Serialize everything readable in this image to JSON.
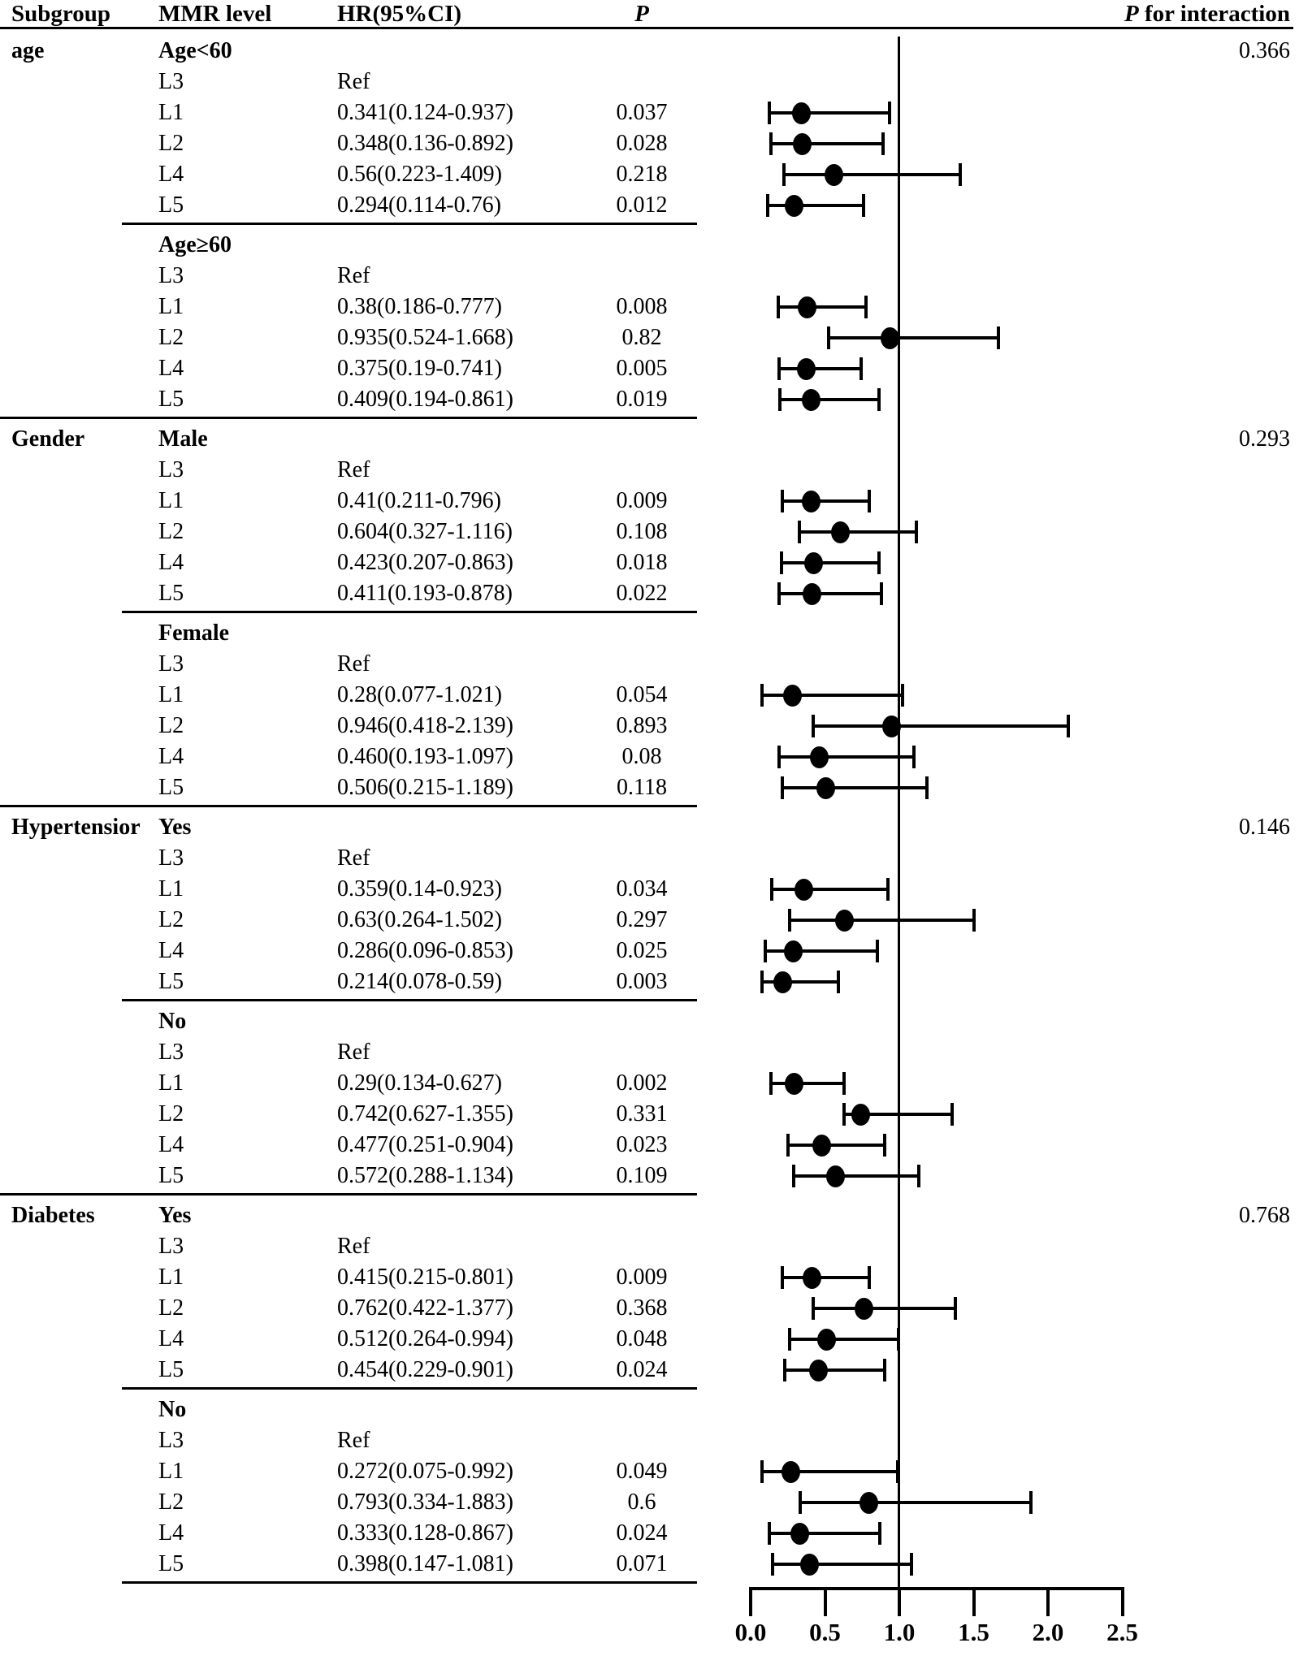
{
  "colors": {
    "ink": "#000000",
    "background": "#ffffff"
  },
  "header": {
    "subgroup": "Subgroup",
    "mmr": "MMR level",
    "hr": "HR(95%CI)",
    "p": "P",
    "p_interaction_italic": "P",
    "p_interaction_rest": " for interaction"
  },
  "chart_data": {
    "type": "forest",
    "x_axis": {
      "tick_labels": [
        "0.0",
        "0.5",
        "1.0",
        "1.5",
        "2.0",
        "2.5"
      ],
      "tick_values": [
        0,
        0.5,
        1.0,
        1.5,
        2.0,
        2.5
      ],
      "range": [
        0,
        2.5
      ],
      "reference_line": 1.0
    },
    "groups": [
      {
        "subgroup": "age",
        "label": "Age<60",
        "p_interaction": "0.366",
        "divider_after": "minor",
        "rows": [
          {
            "level": "L3",
            "hr_text": "Ref",
            "p": ""
          },
          {
            "level": "L1",
            "hr_text": "0.341(0.124-0.937)",
            "p": "0.037",
            "hr": 0.341,
            "lo": 0.124,
            "hi": 0.937
          },
          {
            "level": "L2",
            "hr_text": "0.348(0.136-0.892)",
            "p": "0.028",
            "hr": 0.348,
            "lo": 0.136,
            "hi": 0.892
          },
          {
            "level": "L4",
            "hr_text": "0.56(0.223-1.409)",
            "p": "0.218",
            "hr": 0.56,
            "lo": 0.223,
            "hi": 1.409
          },
          {
            "level": "L5",
            "hr_text": "0.294(0.114-0.76)",
            "p": "0.012",
            "hr": 0.294,
            "lo": 0.114,
            "hi": 0.76
          }
        ]
      },
      {
        "subgroup": "",
        "label": "Age≥60",
        "p_interaction": "",
        "divider_after": "major",
        "rows": [
          {
            "level": "L3",
            "hr_text": "Ref",
            "p": ""
          },
          {
            "level": "L1",
            "hr_text": "0.38(0.186-0.777)",
            "p": "0.008",
            "hr": 0.38,
            "lo": 0.186,
            "hi": 0.777
          },
          {
            "level": "L2",
            "hr_text": "0.935(0.524-1.668)",
            "p": "0.82",
            "hr": 0.935,
            "lo": 0.524,
            "hi": 1.668
          },
          {
            "level": "L4",
            "hr_text": "0.375(0.19-0.741)",
            "p": "0.005",
            "hr": 0.375,
            "lo": 0.19,
            "hi": 0.741
          },
          {
            "level": "L5",
            "hr_text": "0.409(0.194-0.861)",
            "p": "0.019",
            "hr": 0.409,
            "lo": 0.194,
            "hi": 0.861
          }
        ]
      },
      {
        "subgroup": "Gender",
        "label": "Male",
        "p_interaction": "0.293",
        "divider_after": "minor",
        "rows": [
          {
            "level": "L3",
            "hr_text": "Ref",
            "p": ""
          },
          {
            "level": "L1",
            "hr_text": "0.41(0.211-0.796)",
            "p": "0.009",
            "hr": 0.41,
            "lo": 0.211,
            "hi": 0.796
          },
          {
            "level": "L2",
            "hr_text": "0.604(0.327-1.116)",
            "p": "0.108",
            "hr": 0.604,
            "lo": 0.327,
            "hi": 1.116
          },
          {
            "level": "L4",
            "hr_text": "0.423(0.207-0.863)",
            "p": "0.018",
            "hr": 0.423,
            "lo": 0.207,
            "hi": 0.863
          },
          {
            "level": "L5",
            "hr_text": "0.411(0.193-0.878)",
            "p": "0.022",
            "hr": 0.411,
            "lo": 0.193,
            "hi": 0.878
          }
        ]
      },
      {
        "subgroup": "",
        "label": "Female",
        "p_interaction": "",
        "divider_after": "major",
        "rows": [
          {
            "level": "L3",
            "hr_text": "Ref",
            "p": ""
          },
          {
            "level": "L1",
            "hr_text": "0.28(0.077-1.021)",
            "p": "0.054",
            "hr": 0.28,
            "lo": 0.077,
            "hi": 1.021
          },
          {
            "level": "L2",
            "hr_text": "0.946(0.418-2.139)",
            "p": "0.893",
            "hr": 0.946,
            "lo": 0.418,
            "hi": 2.139
          },
          {
            "level": "L4",
            "hr_text": "0.460(0.193-1.097)",
            "p": "0.08",
            "hr": 0.46,
            "lo": 0.193,
            "hi": 1.097
          },
          {
            "level": "L5",
            "hr_text": "0.506(0.215-1.189)",
            "p": "0.118",
            "hr": 0.506,
            "lo": 0.215,
            "hi": 1.189
          }
        ]
      },
      {
        "subgroup": "Hypertensior",
        "label": "Yes",
        "p_interaction": "0.146",
        "divider_after": "minor",
        "rows": [
          {
            "level": "L3",
            "hr_text": "Ref",
            "p": ""
          },
          {
            "level": "L1",
            "hr_text": "0.359(0.14-0.923)",
            "p": "0.034",
            "hr": 0.359,
            "lo": 0.14,
            "hi": 0.923
          },
          {
            "level": "L2",
            "hr_text": "0.63(0.264-1.502)",
            "p": "0.297",
            "hr": 0.63,
            "lo": 0.264,
            "hi": 1.502
          },
          {
            "level": "L4",
            "hr_text": "0.286(0.096-0.853)",
            "p": "0.025",
            "hr": 0.286,
            "lo": 0.096,
            "hi": 0.853
          },
          {
            "level": "L5",
            "hr_text": "0.214(0.078-0.59)",
            "p": "0.003",
            "hr": 0.214,
            "lo": 0.078,
            "hi": 0.59
          }
        ]
      },
      {
        "subgroup": "",
        "label": "No",
        "p_interaction": "",
        "divider_after": "major",
        "rows": [
          {
            "level": "L3",
            "hr_text": "Ref",
            "p": ""
          },
          {
            "level": "L1",
            "hr_text": "0.29(0.134-0.627)",
            "p": "0.002",
            "hr": 0.29,
            "lo": 0.134,
            "hi": 0.627
          },
          {
            "level": "L2",
            "hr_text": "0.742(0.627-1.355)",
            "p": "0.331",
            "hr": 0.742,
            "lo": 0.627,
            "hi": 1.355
          },
          {
            "level": "L4",
            "hr_text": "0.477(0.251-0.904)",
            "p": "0.023",
            "hr": 0.477,
            "lo": 0.251,
            "hi": 0.904
          },
          {
            "level": "L5",
            "hr_text": "0.572(0.288-1.134)",
            "p": "0.109",
            "hr": 0.572,
            "lo": 0.288,
            "hi": 1.134
          }
        ]
      },
      {
        "subgroup": "Diabetes",
        "label": "Yes",
        "p_interaction": "0.768",
        "divider_after": "minor",
        "rows": [
          {
            "level": "L3",
            "hr_text": "Ref",
            "p": ""
          },
          {
            "level": "L1",
            "hr_text": "0.415(0.215-0.801)",
            "p": "0.009",
            "hr": 0.415,
            "lo": 0.215,
            "hi": 0.801
          },
          {
            "level": "L2",
            "hr_text": "0.762(0.422-1.377)",
            "p": "0.368",
            "hr": 0.762,
            "lo": 0.422,
            "hi": 1.377
          },
          {
            "level": "L4",
            "hr_text": "0.512(0.264-0.994)",
            "p": "0.048",
            "hr": 0.512,
            "lo": 0.264,
            "hi": 0.994
          },
          {
            "level": "L5",
            "hr_text": "0.454(0.229-0.901)",
            "p": "0.024",
            "hr": 0.454,
            "lo": 0.229,
            "hi": 0.901
          }
        ]
      },
      {
        "subgroup": "",
        "label": "No",
        "p_interaction": "",
        "divider_after": "minor",
        "rows": [
          {
            "level": "L3",
            "hr_text": "Ref",
            "p": ""
          },
          {
            "level": "L1",
            "hr_text": "0.272(0.075-0.992)",
            "p": "0.049",
            "hr": 0.272,
            "lo": 0.075,
            "hi": 0.992
          },
          {
            "level": "L2",
            "hr_text": "0.793(0.334-1.883)",
            "p": "0.6",
            "hr": 0.793,
            "lo": 0.334,
            "hi": 1.883
          },
          {
            "level": "L4",
            "hr_text": "0.333(0.128-0.867)",
            "p": "0.024",
            "hr": 0.333,
            "lo": 0.128,
            "hi": 0.867
          },
          {
            "level": "L5",
            "hr_text": "0.398(0.147-1.081)",
            "p": "0.071",
            "hr": 0.398,
            "lo": 0.147,
            "hi": 1.081
          }
        ]
      }
    ]
  }
}
